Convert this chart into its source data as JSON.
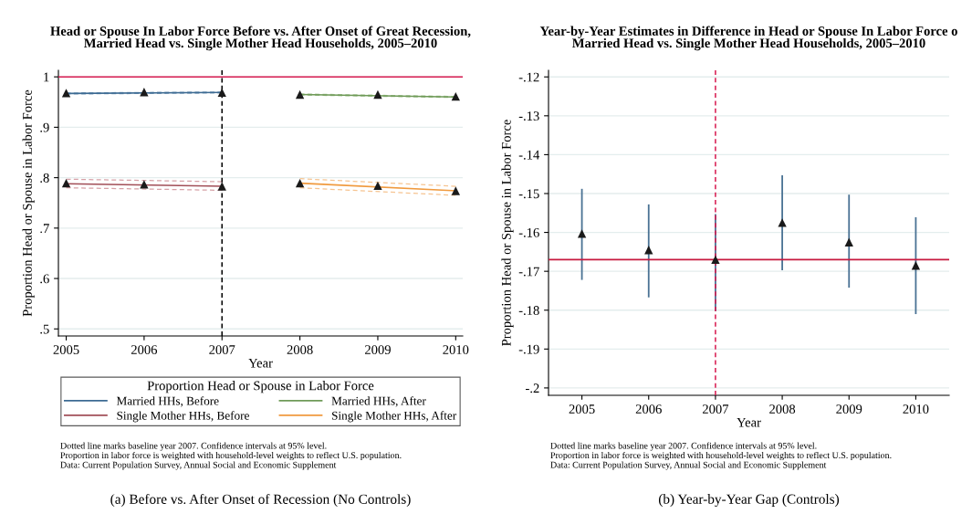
{
  "chart_data": [
    {
      "type": "line",
      "title": "Head or Spouse In Labor Force Before vs. After Onset of Great Recession,\nMarried Head vs. Single Mother Head Households, 2005–2010",
      "xlabel": "Year",
      "ylabel": "Proportion Head or Spouse in Labor Force",
      "legend_title": "Proportion Head or Spouse in Labor Force",
      "legend": "bottom",
      "grid": "y",
      "marker": "none",
      "line_style": "solid",
      "xlim": [
        2004.9,
        2010.09
      ],
      "xticks": [
        2005,
        2006,
        2007,
        2008,
        2009,
        2010
      ],
      "ylim": [
        0.486,
        1.013
      ],
      "yticks": [
        {
          "value": 0.5,
          "label": ".5"
        },
        {
          "value": 0.6,
          "label": ".6"
        },
        {
          "value": 0.7,
          "label": ".7"
        },
        {
          "value": 0.8,
          "label": ".8"
        },
        {
          "value": 0.9,
          "label": ".9"
        },
        1
      ],
      "series": [
        {
          "name": "Married HHs, Before",
          "color": "#3d6b93",
          "x": [
            2005,
            2007
          ],
          "values": [
            0.967,
            0.969
          ]
        },
        {
          "name": "Single Mother HHs, Before",
          "color": "#a24f58",
          "x": [
            2005,
            2007
          ],
          "values": [
            0.788,
            0.783
          ]
        },
        {
          "name": "Married HHs, After",
          "color": "#6f9a58",
          "x": [
            2008,
            2010
          ],
          "values": [
            0.965,
            0.96
          ]
        },
        {
          "name": "Single Mother HHs, After",
          "color": "#f09a3e",
          "x": [
            2008,
            2010
          ],
          "values": [
            0.789,
            0.774
          ]
        },
        {
          "color": "#8eaac3",
          "line_style": "dashed",
          "x": [
            2005,
            2007
          ],
          "values": [
            0.966,
            0.968
          ]
        },
        {
          "color": "#8eaac3",
          "line_style": "dashed",
          "x": [
            2005,
            2007
          ],
          "values": [
            0.968,
            0.97
          ]
        },
        {
          "color": "#a9c79a",
          "line_style": "dashed",
          "x": [
            2008,
            2010
          ],
          "values": [
            0.964,
            0.959
          ]
        },
        {
          "color": "#a9c79a",
          "line_style": "dashed",
          "x": [
            2008,
            2010
          ],
          "values": [
            0.966,
            0.961
          ]
        },
        {
          "color": "#d6a1a7",
          "line_style": "dashed",
          "x": [
            2005,
            2007
          ],
          "values": [
            0.78,
            0.775
          ]
        },
        {
          "color": "#d6a1a7",
          "line_style": "dashed",
          "x": [
            2005,
            2007
          ],
          "values": [
            0.797,
            0.792
          ]
        },
        {
          "color": "#f6c491",
          "line_style": "dashed",
          "x": [
            2008,
            2010
          ],
          "values": [
            0.78,
            0.765
          ]
        },
        {
          "color": "#f6c491",
          "line_style": "dashed",
          "x": [
            2008,
            2010
          ],
          "values": [
            0.798,
            0.783
          ]
        },
        {
          "type": "scatter",
          "color": "#1a1a1a",
          "marker": "triangle",
          "x": [
            2005,
            2006,
            2007,
            2008,
            2009,
            2010
          ],
          "values": [
            0.968,
            0.97,
            0.969,
            0.965,
            0.965,
            0.961
          ]
        },
        {
          "type": "scatter",
          "color": "#1a1a1a",
          "marker": "triangle",
          "x": [
            2005,
            2006,
            2007,
            2008,
            2009,
            2010
          ],
          "values": [
            0.789,
            0.787,
            0.783,
            0.789,
            0.784,
            0.774
          ]
        }
      ],
      "ref_lines": [
        {
          "axis": "y",
          "value": 1,
          "color": "#d81b50",
          "line_style": "solid"
        },
        {
          "axis": "x",
          "value": 2007,
          "color": "#000000",
          "line_style": "dashed"
        }
      ],
      "annotations": [
        "Dotted line marks baseline year 2007. Confidence intervals at 95% level.",
        "Proportion in labor force is weighted with household-level weights to reflect U.S. population.",
        "Data: Current Population Survey, Annual Social and Economic Supplement",
        "(a) Before vs. After Onset of Recession (No Controls)"
      ]
    },
    {
      "type": "scatter",
      "title": "Year-by-Year Estimates in Difference in Head or Spouse In Labor Force o\nMarried Head vs. Single Mother Head Households, 2005–2010",
      "xlabel": "Year",
      "ylabel": "Proportion Head or Spouse in Labor Force",
      "grid": "y",
      "marker": "triangle",
      "xlim": [
        2004.5,
        2010.5
      ],
      "xticks": [
        2005,
        2006,
        2007,
        2008,
        2009,
        2010
      ],
      "ylim": [
        -0.2019,
        -0.1183
      ],
      "yticks": [
        {
          "value": -0.2,
          "label": "-.2"
        },
        {
          "value": -0.19,
          "label": "-.19"
        },
        {
          "value": -0.18,
          "label": "-.18"
        },
        {
          "value": -0.17,
          "label": "-.17"
        },
        {
          "value": -0.16,
          "label": "-.16"
        },
        {
          "value": -0.15,
          "label": "-.15"
        },
        {
          "value": -0.14,
          "label": "-.14"
        },
        {
          "value": -0.13,
          "label": "-.13"
        },
        {
          "value": -0.12,
          "label": "-.12"
        }
      ],
      "series": [
        {
          "color": "#1a1a1a",
          "x": [
            2005,
            2006,
            2007,
            2008,
            2009,
            2010
          ],
          "values": [
            -0.1603,
            -0.1645,
            -0.167,
            -0.1575,
            -0.1625,
            -0.1685
          ],
          "errors": [
            [
              -0.172,
              -0.149
            ],
            [
              -0.1765,
              -0.153
            ],
            [
              -0.18,
              -0.1555
            ],
            [
              -0.1695,
              -0.1455
            ],
            [
              -0.174,
              -0.1505
            ],
            [
              -0.1808,
              -0.1563
            ]
          ]
        }
      ],
      "ref_lines": [
        {
          "axis": "y",
          "value": -0.167,
          "color": "#c8193f",
          "line_style": "solid"
        },
        {
          "axis": "x",
          "value": 2007,
          "color": "#d81b50",
          "line_style": "dashed"
        }
      ],
      "annotations": [
        "Dotted line marks baseline year 2007. Confidence intervals at 95% level.",
        "Proportion in labor force is weighted with household-level weights to reflect U.S. population.",
        "Data: Current Population Survey, Annual Social and Economic Supplement",
        "(b) Year-by-Year Gap (Controls)"
      ]
    }
  ]
}
